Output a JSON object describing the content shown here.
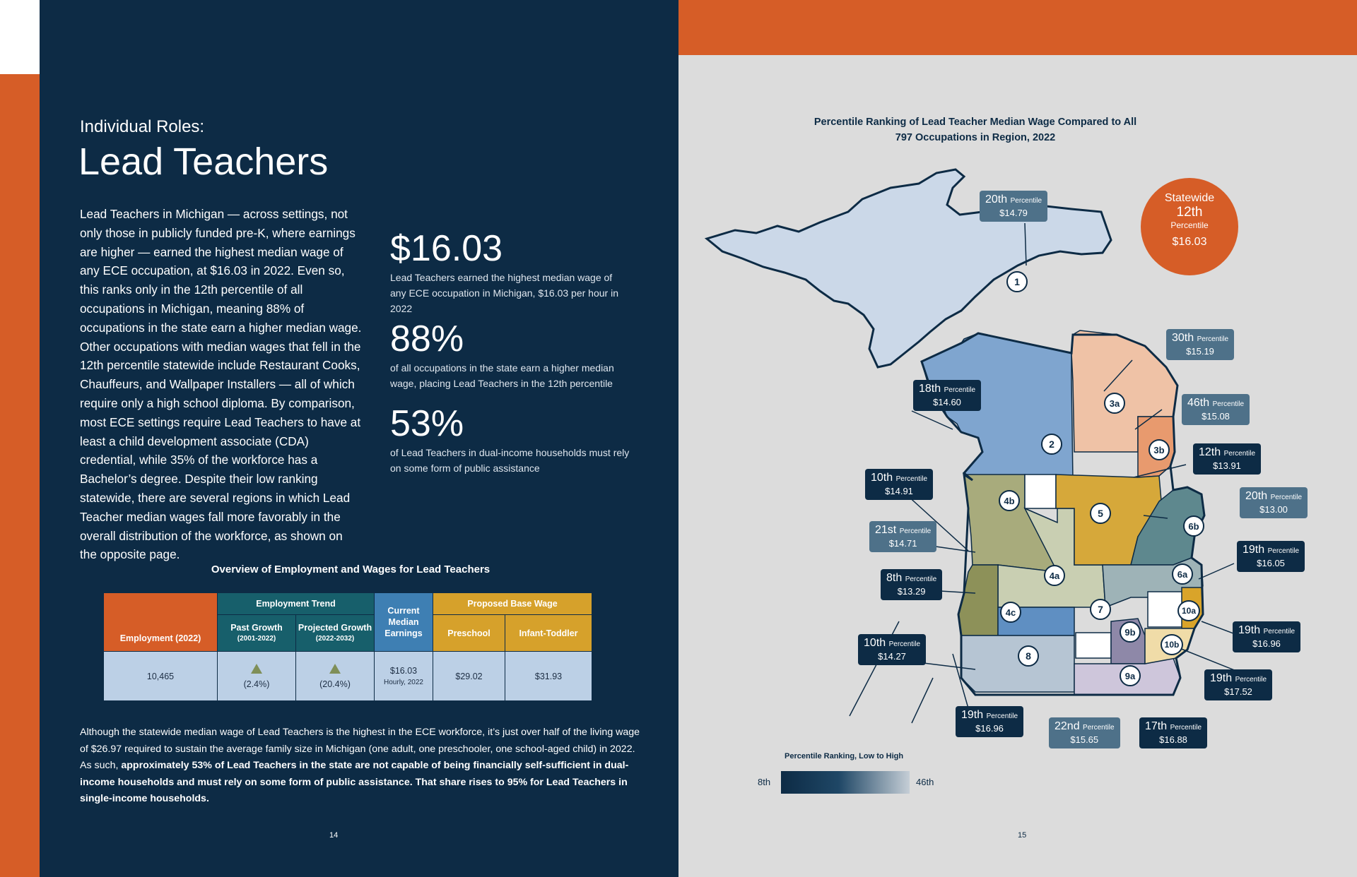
{
  "left": {
    "kicker": "Individual Roles:",
    "title": "Lead Teachers",
    "body": "Lead Teachers in Michigan — across settings, not only those in publicly funded pre-K, where earnings are higher — earned the highest median wage of any ECE occupation, at $16.03 in 2022. Even so, this ranks only in the 12th percentile of all occupations in Michigan, meaning 88% of occupations in the state earn a higher median wage. Other occupations with median wages that fell in the 12th percentile statewide include Restaurant Cooks, Chauffeurs, and Wallpaper Installers — all of which require only a high school diploma. By comparison, most ECE settings require Lead Teachers to have at least a child development associate (CDA) credential, while 35% of the workforce has a Bachelor’s degree. Despite their low ranking statewide, there are several regions in which Lead Teacher median wages fall more favorably in the overall distribution of the workforce, as shown on the opposite page.",
    "stats": [
      {
        "value": "$16.03",
        "desc": "Lead Teachers earned the highest median wage of any ECE occupation in Michigan, $16.03 per hour in 2022"
      },
      {
        "value": "88%",
        "desc": "of all occupations in the state earn a higher median wage, placing Lead Teachers in the 12th percentile"
      },
      {
        "value": "53%",
        "desc": "of Lead Teachers in dual-income households must rely on some form of public assistance"
      }
    ],
    "table": {
      "title": "Overview of Employment and Wages for Lead Teachers",
      "headers": {
        "employment": "Employment (2022)",
        "trend": "Employment Trend",
        "past": "Past Growth",
        "past_years": "(2001-2022)",
        "projected": "Projected Growth",
        "projected_years": "(2022-2032)",
        "current": "Current Median Earnings",
        "proposed": "Proposed Base Wage",
        "preschool": "Preschool",
        "infant": "Infant-Toddler"
      },
      "values": {
        "employment": "10,465",
        "past": "(2.4%)",
        "projected": "(20.4%)",
        "current": "$16.03",
        "current_note": "Hourly, 2022",
        "preschool": "$29.02",
        "infant": "$31.93"
      },
      "colors": {
        "orange": "#d65d27",
        "teal": "#175f6b",
        "blue": "#3e7fb3",
        "gold": "#d6a12b"
      }
    },
    "footer_plain": "Although the statewide median wage of Lead Teachers is the highest in the ECE workforce, it’s just over half of the living wage of $26.97 required to sustain the average family size in Michigan (one adult, one preschooler, one school-aged child) in 2022. As such, ",
    "footer_bold": "approximately 53% of Lead Teachers in the state are not capable of being financially self-sufficient in dual-income households and must rely on some form of public assistance. That share rises to 95% for Lead Teachers in single-income households.",
    "page_number": "14"
  },
  "right": {
    "map_title": "Percentile Ranking of Lead Teacher Median Wage Compared to All 797 Occupations in Region, 2022",
    "statewide": {
      "label": "Statewide",
      "rank": "12th",
      "word": "Percentile",
      "wage": "$16.03"
    },
    "region_labels": [
      "1",
      "2",
      "3a",
      "3b",
      "4a",
      "4b",
      "4c",
      "5",
      "6a",
      "6b",
      "7",
      "8",
      "9a",
      "9b",
      "10a",
      "10b"
    ],
    "percentile_word": "Percentile",
    "callouts": [
      {
        "rank": "20th",
        "wage": "$14.79",
        "tone": "mid"
      },
      {
        "rank": "30th",
        "wage": "$15.19",
        "tone": "mid"
      },
      {
        "rank": "18th",
        "wage": "$14.60",
        "tone": "dark"
      },
      {
        "rank": "46th",
        "wage": "$15.08",
        "tone": "mid"
      },
      {
        "rank": "12th",
        "wage": "$13.91",
        "tone": "dark"
      },
      {
        "rank": "10th",
        "wage": "$14.91",
        "tone": "dark"
      },
      {
        "rank": "20th",
        "wage": "$13.00",
        "tone": "mid"
      },
      {
        "rank": "21st",
        "wage": "$14.71",
        "tone": "mid"
      },
      {
        "rank": "19th",
        "wage": "$16.05",
        "tone": "dark"
      },
      {
        "rank": "8th",
        "wage": "$13.29",
        "tone": "dark"
      },
      {
        "rank": "10th",
        "wage": "$14.27",
        "tone": "dark"
      },
      {
        "rank": "19th",
        "wage": "$16.96",
        "tone": "dark"
      },
      {
        "rank": "19th",
        "wage": "$17.52",
        "tone": "dark"
      },
      {
        "rank": "19th",
        "wage": "$16.96",
        "tone": "dark"
      },
      {
        "rank": "22nd",
        "wage": "$15.65",
        "tone": "mid"
      },
      {
        "rank": "17th",
        "wage": "$16.88",
        "tone": "dark"
      }
    ],
    "legend": {
      "title": "Percentile Ranking, Low to High",
      "low": "8th",
      "high": "46th"
    },
    "page_number": "15"
  }
}
